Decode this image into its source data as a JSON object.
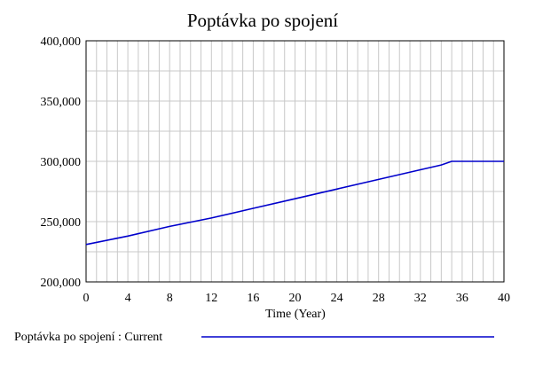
{
  "chart_data": {
    "type": "line",
    "title": "Poptávka po spojení",
    "xlabel": "Time (Year)",
    "ylabel": "",
    "xlim": [
      0,
      40
    ],
    "ylim": [
      200000,
      400000
    ],
    "x_ticks": [
      0,
      4,
      8,
      12,
      16,
      20,
      24,
      28,
      32,
      36,
      40
    ],
    "x_tick_labels": [
      "0",
      "4",
      "8",
      "12",
      "16",
      "20",
      "24",
      "28",
      "32",
      "36",
      "40"
    ],
    "y_ticks": [
      200000,
      250000,
      300000,
      350000,
      400000
    ],
    "y_tick_labels": [
      "200,000",
      "250,000",
      "300,000",
      "350,000",
      "400,000"
    ],
    "grid": true,
    "legend": "bottom",
    "colors": {
      "series": "#0000cc",
      "grid": "#c8c8c8",
      "axis": "#000000"
    },
    "series": [
      {
        "name": "Poptávka po spojení : Current",
        "x": [
          0,
          4,
          8,
          12,
          16,
          20,
          24,
          28,
          32,
          34,
          35,
          36,
          40
        ],
        "y": [
          231000,
          238000,
          246000,
          253000,
          261000,
          269000,
          277000,
          285000,
          293000,
          297000,
          300000,
          300000,
          300000
        ]
      }
    ]
  }
}
